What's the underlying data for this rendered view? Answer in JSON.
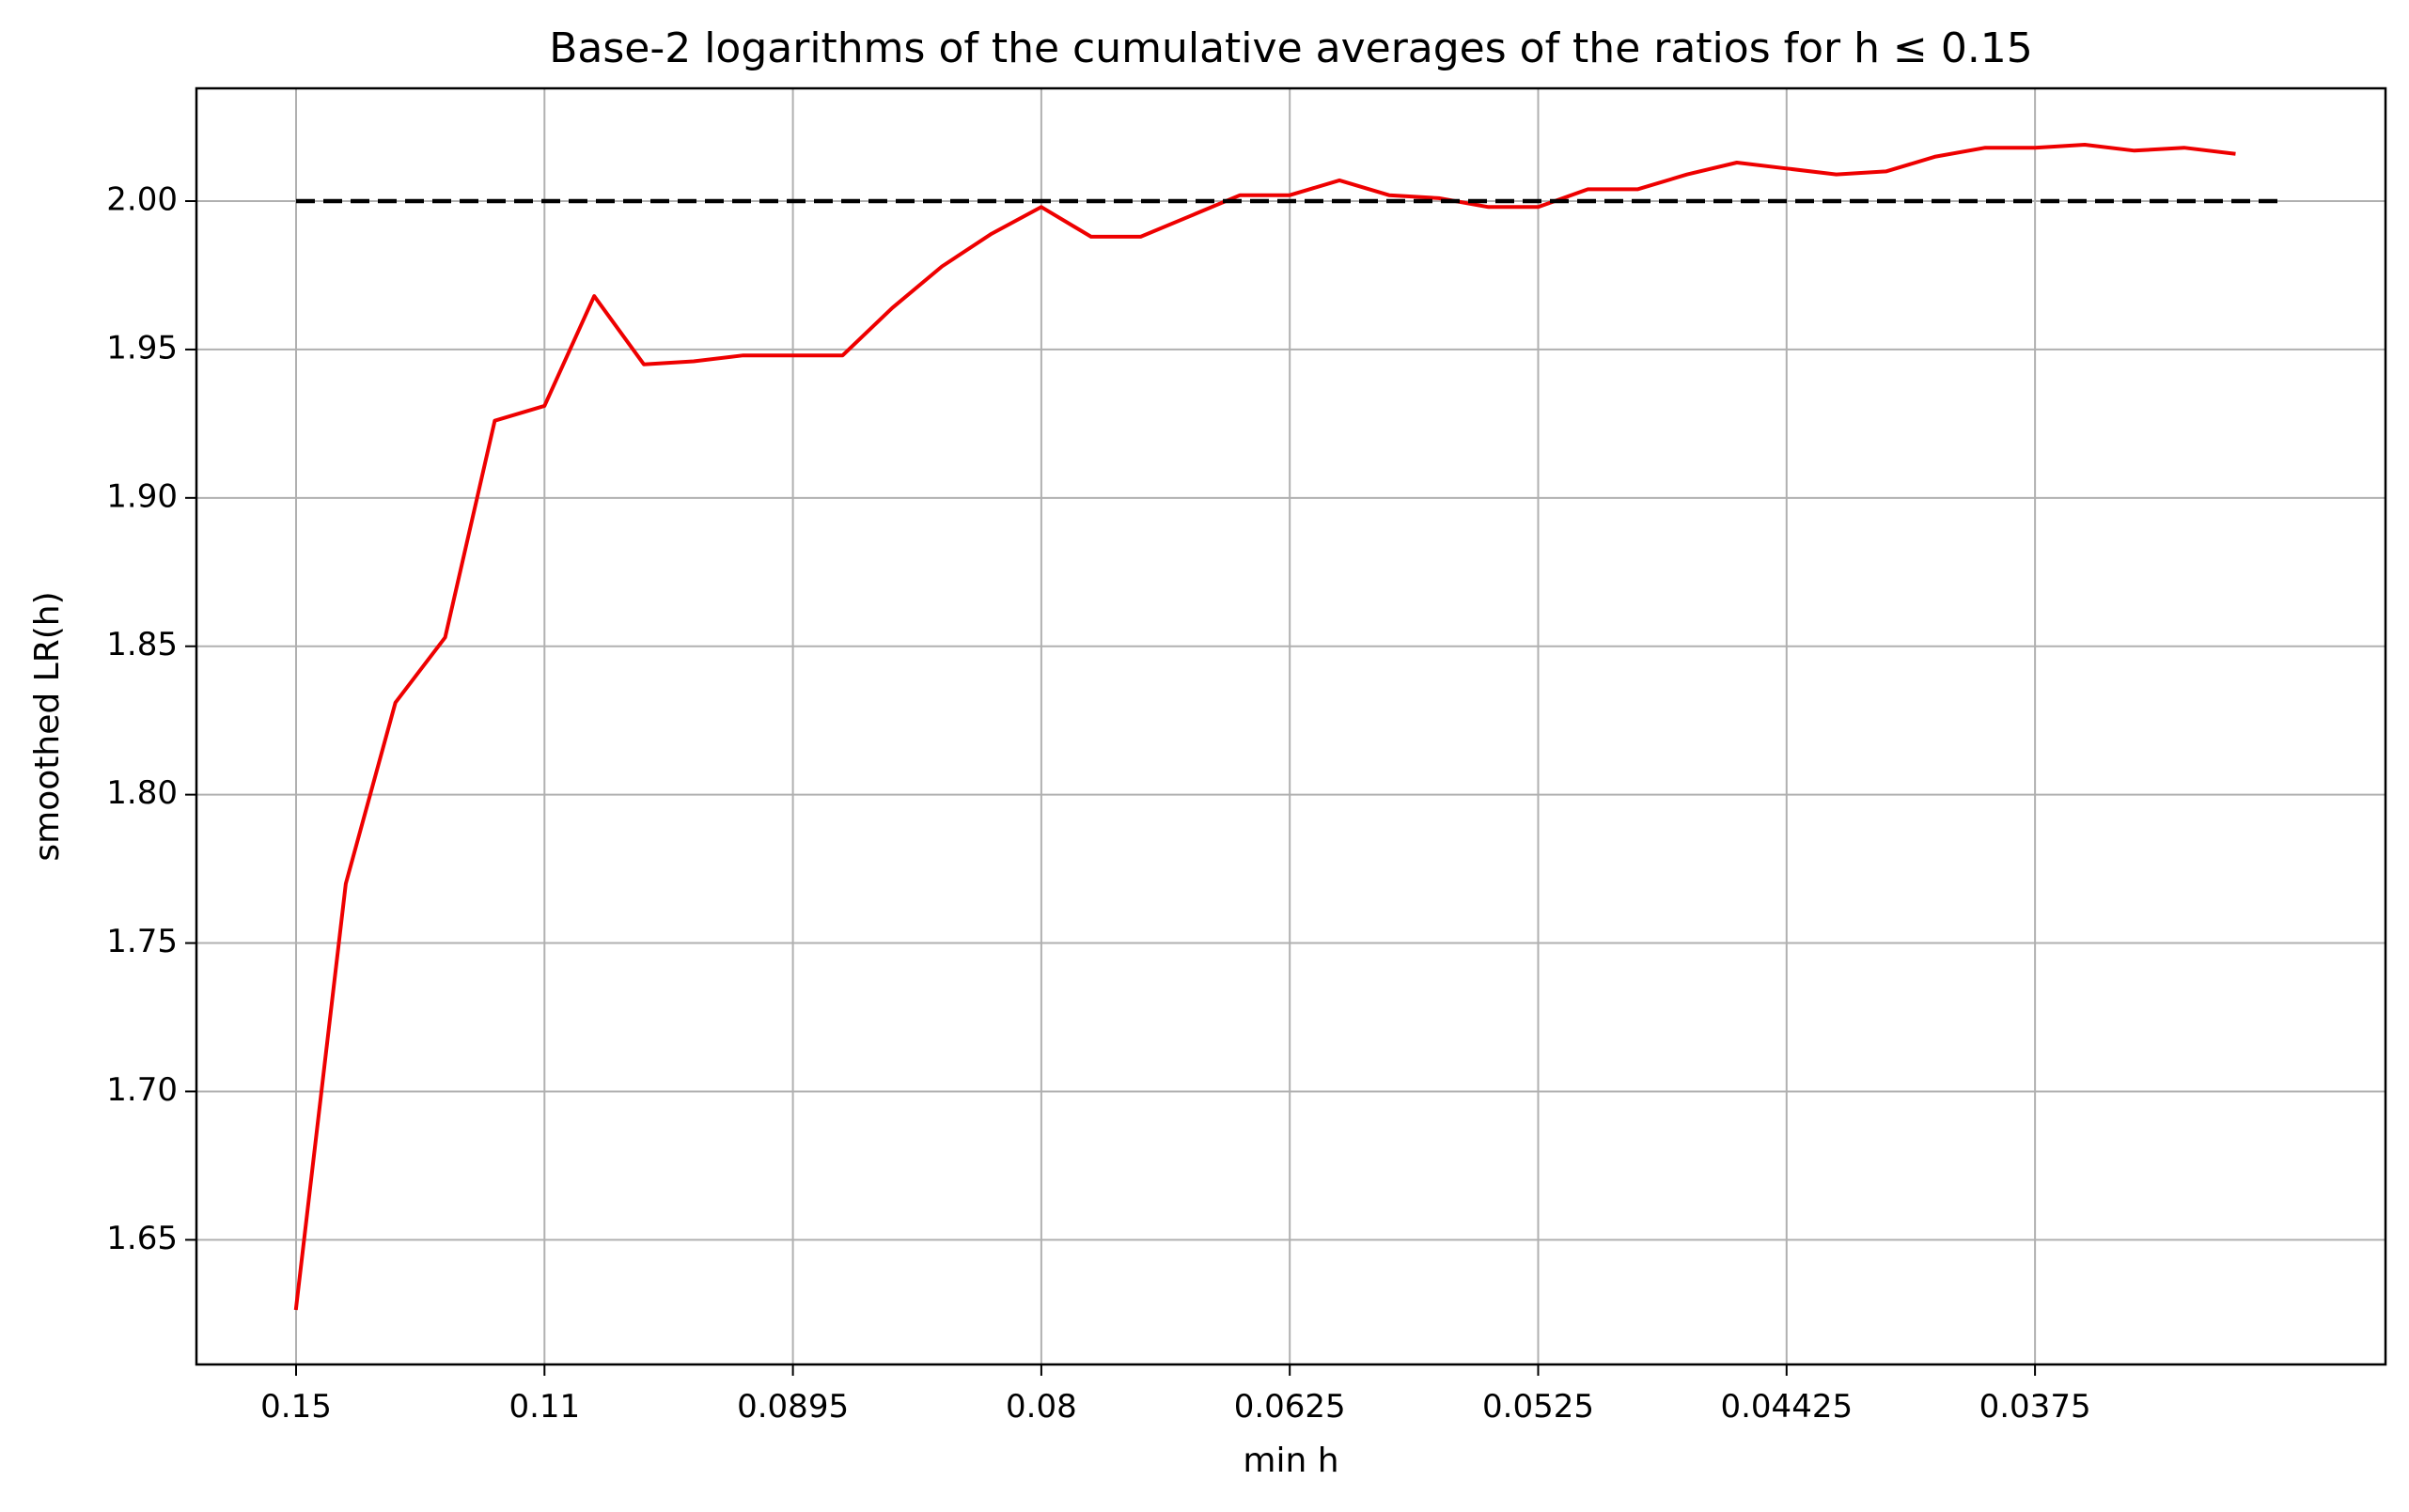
{
  "chart_data": {
    "type": "line",
    "title": "Base-2 logarithms of the cumulative averages of the ratios for h ≤ 0.15",
    "xlabel": "min h",
    "ylabel": "smoothed LR(h)",
    "x_tick_labels": [
      "0.15",
      "0.11",
      "0.0895",
      "0.08",
      "0.0625",
      "0.0525",
      "0.04425",
      "0.0375"
    ],
    "y_ticks": [
      1.65,
      1.7,
      1.75,
      1.8,
      1.85,
      1.9,
      1.95,
      2.0
    ],
    "y_tick_labels": [
      "1.65",
      "1.70",
      "1.75",
      "1.80",
      "1.85",
      "1.90",
      "1.95",
      "2.00"
    ],
    "ylim": [
      1.608,
      2.038
    ],
    "grid": true,
    "series": [
      {
        "color": "#ee0000",
        "values": [
          1.627,
          1.77,
          1.831,
          1.853,
          1.926,
          1.931,
          1.968,
          1.945,
          1.946,
          1.948,
          1.948,
          1.948,
          1.964,
          1.978,
          1.989,
          1.998,
          1.988,
          1.988,
          1.995,
          2.002,
          2.002,
          2.007,
          2.002,
          2.001,
          1.998,
          1.998,
          2.004,
          2.004,
          2.009,
          2.013,
          2.011,
          2.009,
          2.01,
          2.015,
          2.018,
          2.018,
          2.019,
          2.017,
          2.018,
          2.016
        ]
      },
      {
        "color": "#000000",
        "values": [
          2.0,
          2.0
        ]
      }
    ]
  }
}
